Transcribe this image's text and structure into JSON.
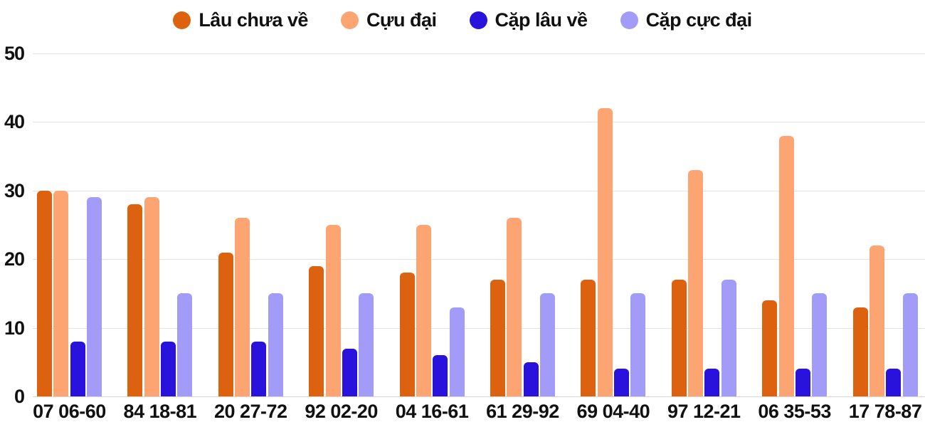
{
  "colors": {
    "background": "#ffffff",
    "gridline": "#e3e3e3",
    "baseline": "#d6d6d6",
    "tick_text": "#111111"
  },
  "chart_data": {
    "type": "bar",
    "title": "",
    "xlabel": "",
    "ylabel": "",
    "ylim": [
      0,
      50
    ],
    "yticks": [
      0,
      10,
      20,
      30,
      40,
      50
    ],
    "grid": true,
    "legend_position": "top",
    "categories": [
      "07 06-60",
      "84 18-81",
      "20 27-72",
      "92 02-20",
      "04 16-61",
      "61 29-92",
      "69 04-40",
      "97 12-21",
      "06 35-53",
      "17 78-87"
    ],
    "series": [
      {
        "name": "Lâu chưa về",
        "color": "#dc6210",
        "values": [
          30,
          28,
          21,
          19,
          18,
          17,
          17,
          17,
          14,
          13
        ]
      },
      {
        "name": "Cựu đại",
        "color": "#fca572",
        "values": [
          30,
          29,
          26,
          25,
          25,
          26,
          42,
          33,
          38,
          22
        ]
      },
      {
        "name": "Cặp lâu về",
        "color": "#2812dc",
        "values": [
          8,
          8,
          8,
          7,
          6,
          5,
          4,
          4,
          4,
          4
        ]
      },
      {
        "name": "Cặp cực đại",
        "color": "#a29cf8",
        "values": [
          29,
          15,
          15,
          15,
          13,
          15,
          15,
          17,
          15,
          15
        ]
      }
    ]
  }
}
